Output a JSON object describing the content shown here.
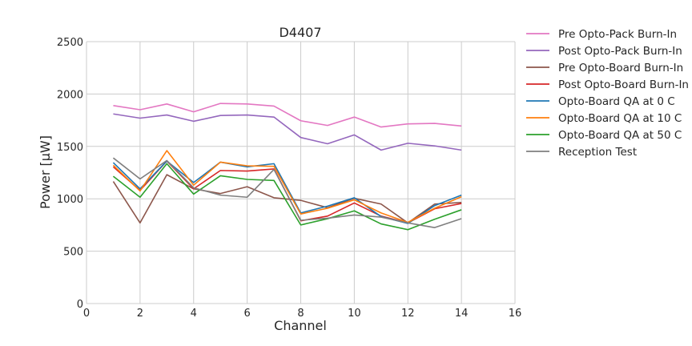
{
  "chart_data": {
    "type": "line",
    "title": "D4407",
    "xlabel": "Channel",
    "ylabel": "Power [μW]",
    "xlim": [
      0,
      16
    ],
    "ylim": [
      0,
      2500
    ],
    "xticks": [
      0,
      2,
      4,
      6,
      8,
      10,
      12,
      14,
      16
    ],
    "yticks": [
      0,
      500,
      1000,
      1500,
      2000,
      2500
    ],
    "grid": true,
    "legend_position": "outside-right",
    "x": [
      1,
      2,
      3,
      4,
      5,
      6,
      7,
      8,
      9,
      10,
      11,
      12,
      13,
      14
    ],
    "series": [
      {
        "name": "Pre Opto-Pack Burn-In",
        "color": "#e377c2",
        "values": [
          1890,
          1850,
          1905,
          1830,
          1910,
          1905,
          1885,
          1745,
          1700,
          1780,
          1685,
          1715,
          1720,
          1695
        ]
      },
      {
        "name": "Post Opto-Pack Burn-In",
        "color": "#9467bd",
        "values": [
          1810,
          1770,
          1800,
          1740,
          1795,
          1800,
          1780,
          1585,
          1525,
          1610,
          1465,
          1530,
          1505,
          1465
        ]
      },
      {
        "name": "Pre Opto-Board Burn-In",
        "color": "#8c564b",
        "values": [
          1165,
          770,
          1230,
          1095,
          1050,
          1115,
          1010,
          985,
          915,
          1005,
          950,
          770,
          950,
          965
        ]
      },
      {
        "name": "Post Opto-Board Burn-In",
        "color": "#d62728",
        "values": [
          1305,
          1080,
          1360,
          1095,
          1270,
          1265,
          1285,
          790,
          835,
          960,
          835,
          770,
          905,
          955
        ]
      },
      {
        "name": "Opto-Board QA at 0 C",
        "color": "#1f77b4",
        "values": [
          1345,
          1095,
          1360,
          1155,
          1350,
          1305,
          1335,
          865,
          930,
          1010,
          830,
          765,
          935,
          1035
        ]
      },
      {
        "name": "Opto-Board QA at 10 C",
        "color": "#ff7f0e",
        "values": [
          1320,
          1075,
          1460,
          1130,
          1350,
          1315,
          1310,
          855,
          910,
          990,
          865,
          775,
          910,
          1020
        ]
      },
      {
        "name": "Opto-Board QA at 50 C",
        "color": "#2ca02c",
        "values": [
          1215,
          1015,
          1335,
          1045,
          1220,
          1185,
          1175,
          750,
          810,
          885,
          760,
          705,
          805,
          895
        ]
      },
      {
        "name": "Reception Test",
        "color": "#7f7f7f",
        "values": [
          1390,
          1190,
          1365,
          1105,
          1035,
          1015,
          1280,
          795,
          815,
          845,
          825,
          770,
          725,
          810
        ]
      }
    ]
  }
}
